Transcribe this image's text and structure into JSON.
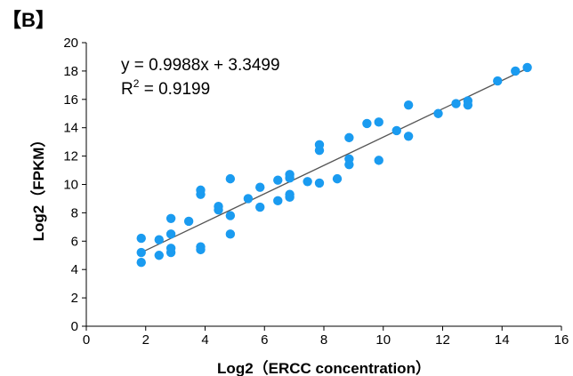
{
  "panel_label": "【B】",
  "annotation": {
    "equation": "y = 0.9988x + 3.3499",
    "r2_prefix": "R",
    "r2_sup": "2",
    "r2_value": " = 0.9199"
  },
  "chart_data": {
    "type": "scatter",
    "xlabel": "Log2（ERCC concentration）",
    "ylabel": "Log2（FPKM）",
    "xlim": [
      0,
      16
    ],
    "ylim": [
      0,
      20
    ],
    "xticks": [
      0,
      2,
      4,
      6,
      8,
      10,
      12,
      14,
      16
    ],
    "yticks": [
      0,
      2,
      4,
      6,
      8,
      10,
      12,
      14,
      16,
      18,
      20
    ],
    "grid": false,
    "marker_color": "#1a9bf0",
    "trendline": {
      "slope": 0.9988,
      "intercept": 3.3499,
      "color": "#555555"
    },
    "points": [
      [
        1.85,
        4.5
      ],
      [
        1.85,
        5.2
      ],
      [
        1.85,
        6.2
      ],
      [
        2.45,
        5.0
      ],
      [
        2.45,
        6.1
      ],
      [
        2.85,
        5.2
      ],
      [
        2.85,
        5.5
      ],
      [
        2.85,
        6.5
      ],
      [
        2.85,
        7.6
      ],
      [
        3.45,
        7.4
      ],
      [
        3.85,
        5.4
      ],
      [
        3.85,
        5.6
      ],
      [
        3.85,
        9.3
      ],
      [
        3.85,
        9.6
      ],
      [
        4.45,
        8.2
      ],
      [
        4.45,
        8.45
      ],
      [
        4.85,
        6.5
      ],
      [
        4.85,
        7.8
      ],
      [
        4.85,
        10.4
      ],
      [
        5.45,
        9.0
      ],
      [
        5.85,
        8.4
      ],
      [
        5.85,
        9.8
      ],
      [
        6.45,
        8.85
      ],
      [
        6.45,
        10.3
      ],
      [
        6.85,
        9.1
      ],
      [
        6.85,
        9.3
      ],
      [
        6.85,
        10.45
      ],
      [
        6.85,
        10.7
      ],
      [
        7.45,
        10.2
      ],
      [
        7.85,
        10.1
      ],
      [
        7.85,
        12.4
      ],
      [
        7.85,
        12.8
      ],
      [
        8.45,
        10.4
      ],
      [
        8.85,
        11.4
      ],
      [
        8.85,
        11.8
      ],
      [
        8.85,
        13.3
      ],
      [
        9.45,
        14.3
      ],
      [
        9.85,
        11.7
      ],
      [
        9.85,
        14.4
      ],
      [
        10.45,
        13.8
      ],
      [
        10.85,
        13.4
      ],
      [
        10.85,
        15.6
      ],
      [
        11.85,
        15.0
      ],
      [
        12.45,
        15.7
      ],
      [
        12.85,
        15.6
      ],
      [
        12.85,
        15.9
      ],
      [
        13.85,
        17.3
      ],
      [
        14.45,
        18.0
      ],
      [
        14.85,
        18.25
      ]
    ]
  }
}
